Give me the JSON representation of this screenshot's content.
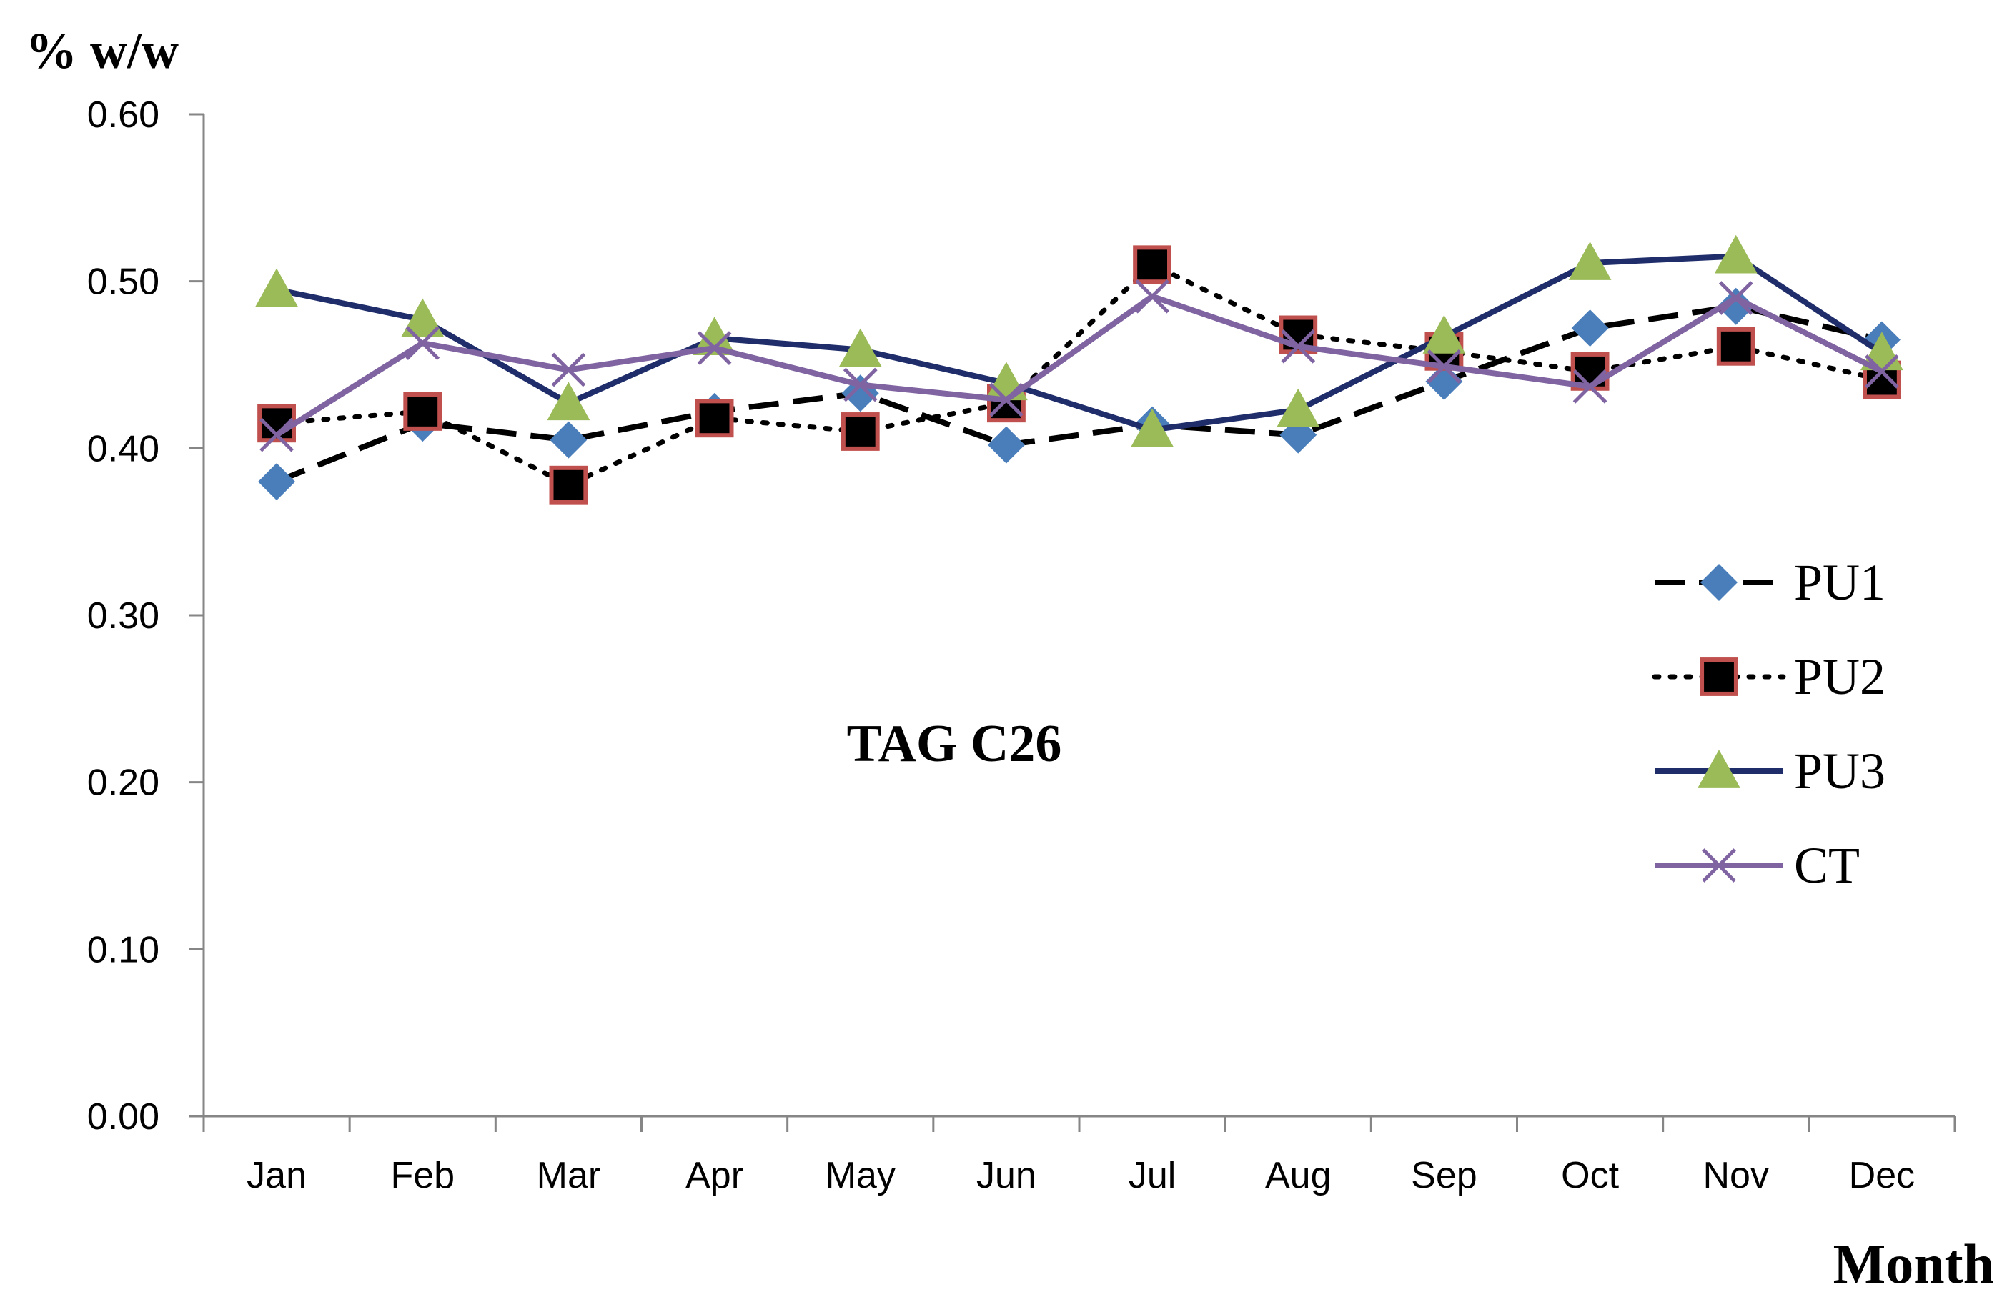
{
  "chart_data": {
    "type": "line",
    "ylabel": "% w/w",
    "xlabel": "Month",
    "annotation": "TAG C26",
    "categories": [
      "Jan",
      "Feb",
      "Mar",
      "Apr",
      "May",
      "Jun",
      "Jul",
      "Aug",
      "Sep",
      "Oct",
      "Nov",
      "Dec"
    ],
    "ylim": [
      0,
      0.6
    ],
    "yticks": [
      "0.00",
      "0.10",
      "0.20",
      "0.30",
      "0.40",
      "0.50",
      "0.60"
    ],
    "grid": false,
    "legend_position": "right",
    "series": [
      {
        "name": "PU1",
        "color": "#000000",
        "marker": "diamond",
        "marker_color": "#4A7EBB",
        "line_style": "dashed",
        "values": [
          0.38,
          0.415,
          0.405,
          0.422,
          0.433,
          0.402,
          0.414,
          0.408,
          0.44,
          0.472,
          0.485,
          0.465
        ]
      },
      {
        "name": "PU2",
        "color": "#000000",
        "marker": "square",
        "marker_color": "#000000",
        "marker_edge": "#C0504D",
        "line_style": "dotted",
        "values": [
          0.415,
          0.422,
          0.378,
          0.418,
          0.41,
          0.427,
          0.51,
          0.468,
          0.458,
          0.446,
          0.461,
          0.441
        ]
      },
      {
        "name": "PU3",
        "color": "#1F2D6B",
        "marker": "triangle",
        "marker_color": "#9BBB59",
        "line_style": "solid",
        "values": [
          0.495,
          0.477,
          0.427,
          0.466,
          0.459,
          0.439,
          0.411,
          0.423,
          0.467,
          0.511,
          0.515,
          0.457
        ]
      },
      {
        "name": "CT",
        "color": "#8064A2",
        "marker": "x",
        "marker_color": "#8064A2",
        "line_style": "solid",
        "values": [
          0.408,
          0.463,
          0.447,
          0.46,
          0.438,
          0.429,
          0.491,
          0.461,
          0.449,
          0.437,
          0.49,
          0.446
        ]
      }
    ]
  }
}
